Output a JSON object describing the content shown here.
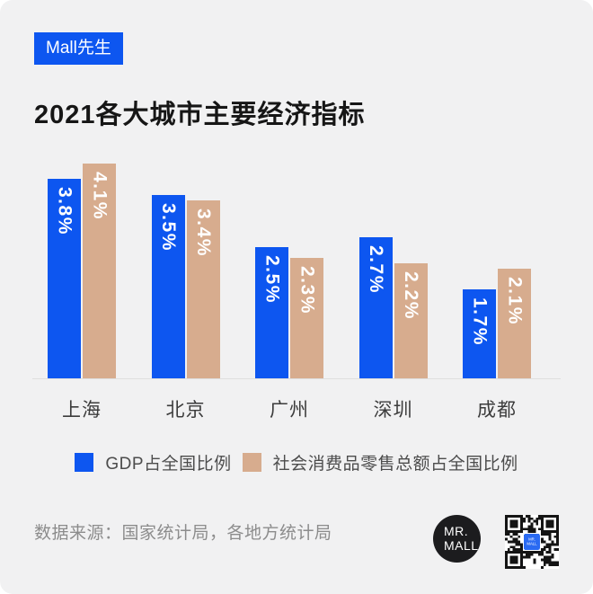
{
  "badge": {
    "label": "Mall先生"
  },
  "header": {
    "title": "2021各大城市主要经济指标"
  },
  "chart_data": {
    "type": "bar",
    "title": "2021各大城市主要经济指标",
    "categories": [
      "上海",
      "北京",
      "广州",
      "深圳",
      "成都"
    ],
    "series": [
      {
        "name": "GDP占全国比例",
        "color": "#0d56f0",
        "values": [
          3.8,
          3.5,
          2.5,
          2.7,
          1.7
        ]
      },
      {
        "name": "社会消费品零售总额占全国比例",
        "color": "#d7ac8e",
        "values": [
          4.1,
          3.4,
          2.3,
          2.2,
          2.1
        ]
      }
    ],
    "value_labels": true,
    "value_suffix": "%",
    "value_label_rotation": 90,
    "ylim": [
      0,
      4.2
    ],
    "grid": false,
    "legend_position": "bottom"
  },
  "footer": {
    "source": "数据来源：国家统计局，各地方统计局",
    "logo": {
      "line1": "MR.",
      "line2": "MALL"
    }
  },
  "colors": {
    "accent_blue": "#0d56f0",
    "accent_tan": "#d7ac8e",
    "background": "#f1f1f2",
    "qr_center": "#2a6af2"
  }
}
